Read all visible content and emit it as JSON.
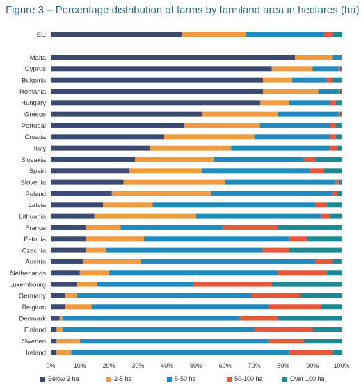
{
  "chart_data": {
    "type": "bar",
    "orientation": "horizontal",
    "stacked": true,
    "title": "Figure 3 – Percentage distribution of farms by farmland area in hectares (ha)",
    "xlim": [
      0,
      100
    ],
    "x_ticks": [
      "0%",
      "10%",
      "20%",
      "30%",
      "40%",
      "50%",
      "60%",
      "70%",
      "80%",
      "90%",
      "100%"
    ],
    "grid": false,
    "legend_position": "bottom",
    "categories": [
      "EU",
      "Malta",
      "Cyprus",
      "Bulgaria",
      "Romania",
      "Hungary",
      "Greece",
      "Portugal",
      "Croatia",
      "Italy",
      "Slovakia",
      "Spain",
      "Slovenia",
      "Poland",
      "Latvia",
      "Lithuania",
      "France",
      "Estonia",
      "Czechia",
      "Austria",
      "Netherlands",
      "Luxembourg",
      "Germany",
      "Belgium",
      "Denmark",
      "Finland",
      "Sweden",
      "Ireland"
    ],
    "series": [
      {
        "name": "Below 2 ha",
        "color": "#3a4a72",
        "values": [
          45,
          84,
          76,
          73,
          73,
          72,
          52,
          46,
          39,
          34,
          29,
          27,
          25,
          21,
          18,
          15,
          12,
          12,
          12,
          11,
          10,
          9,
          5,
          5,
          3,
          2,
          2,
          2
        ]
      },
      {
        "name": "2-5 ha",
        "color": "#f19a3e",
        "values": [
          22,
          13,
          14,
          10,
          19,
          10,
          26,
          26,
          31,
          28,
          27,
          25,
          35,
          34,
          17,
          35,
          12,
          20,
          7,
          20,
          10,
          7,
          4,
          9,
          1,
          2,
          8,
          5
        ]
      },
      {
        "name": "5-50 ha",
        "color": "#1f8ac0",
        "values": [
          27,
          3,
          9,
          12,
          7,
          14,
          21,
          24,
          26,
          34,
          31,
          37,
          38,
          42,
          56,
          43,
          35,
          50,
          54,
          60,
          58,
          33,
          60,
          61,
          61,
          66,
          65,
          75
        ]
      },
      {
        "name": "50-100 ha",
        "color": "#e8573a",
        "values": [
          3,
          0,
          0.5,
          2,
          0.5,
          2,
          0.5,
          2,
          2,
          2.5,
          4,
          5,
          1,
          1.5,
          4,
          3,
          19,
          6,
          9,
          6,
          17,
          27,
          17,
          18,
          13,
          20,
          12,
          15
        ]
      },
      {
        "name": "Over 100 ha",
        "color": "#1b8a93",
        "values": [
          3,
          0,
          0.5,
          3,
          0.5,
          2,
          0.5,
          2,
          2,
          1.5,
          9,
          6,
          1,
          1.5,
          5,
          4,
          22,
          12,
          18,
          3,
          5,
          24,
          14,
          7,
          22,
          10,
          13,
          3
        ]
      }
    ]
  }
}
